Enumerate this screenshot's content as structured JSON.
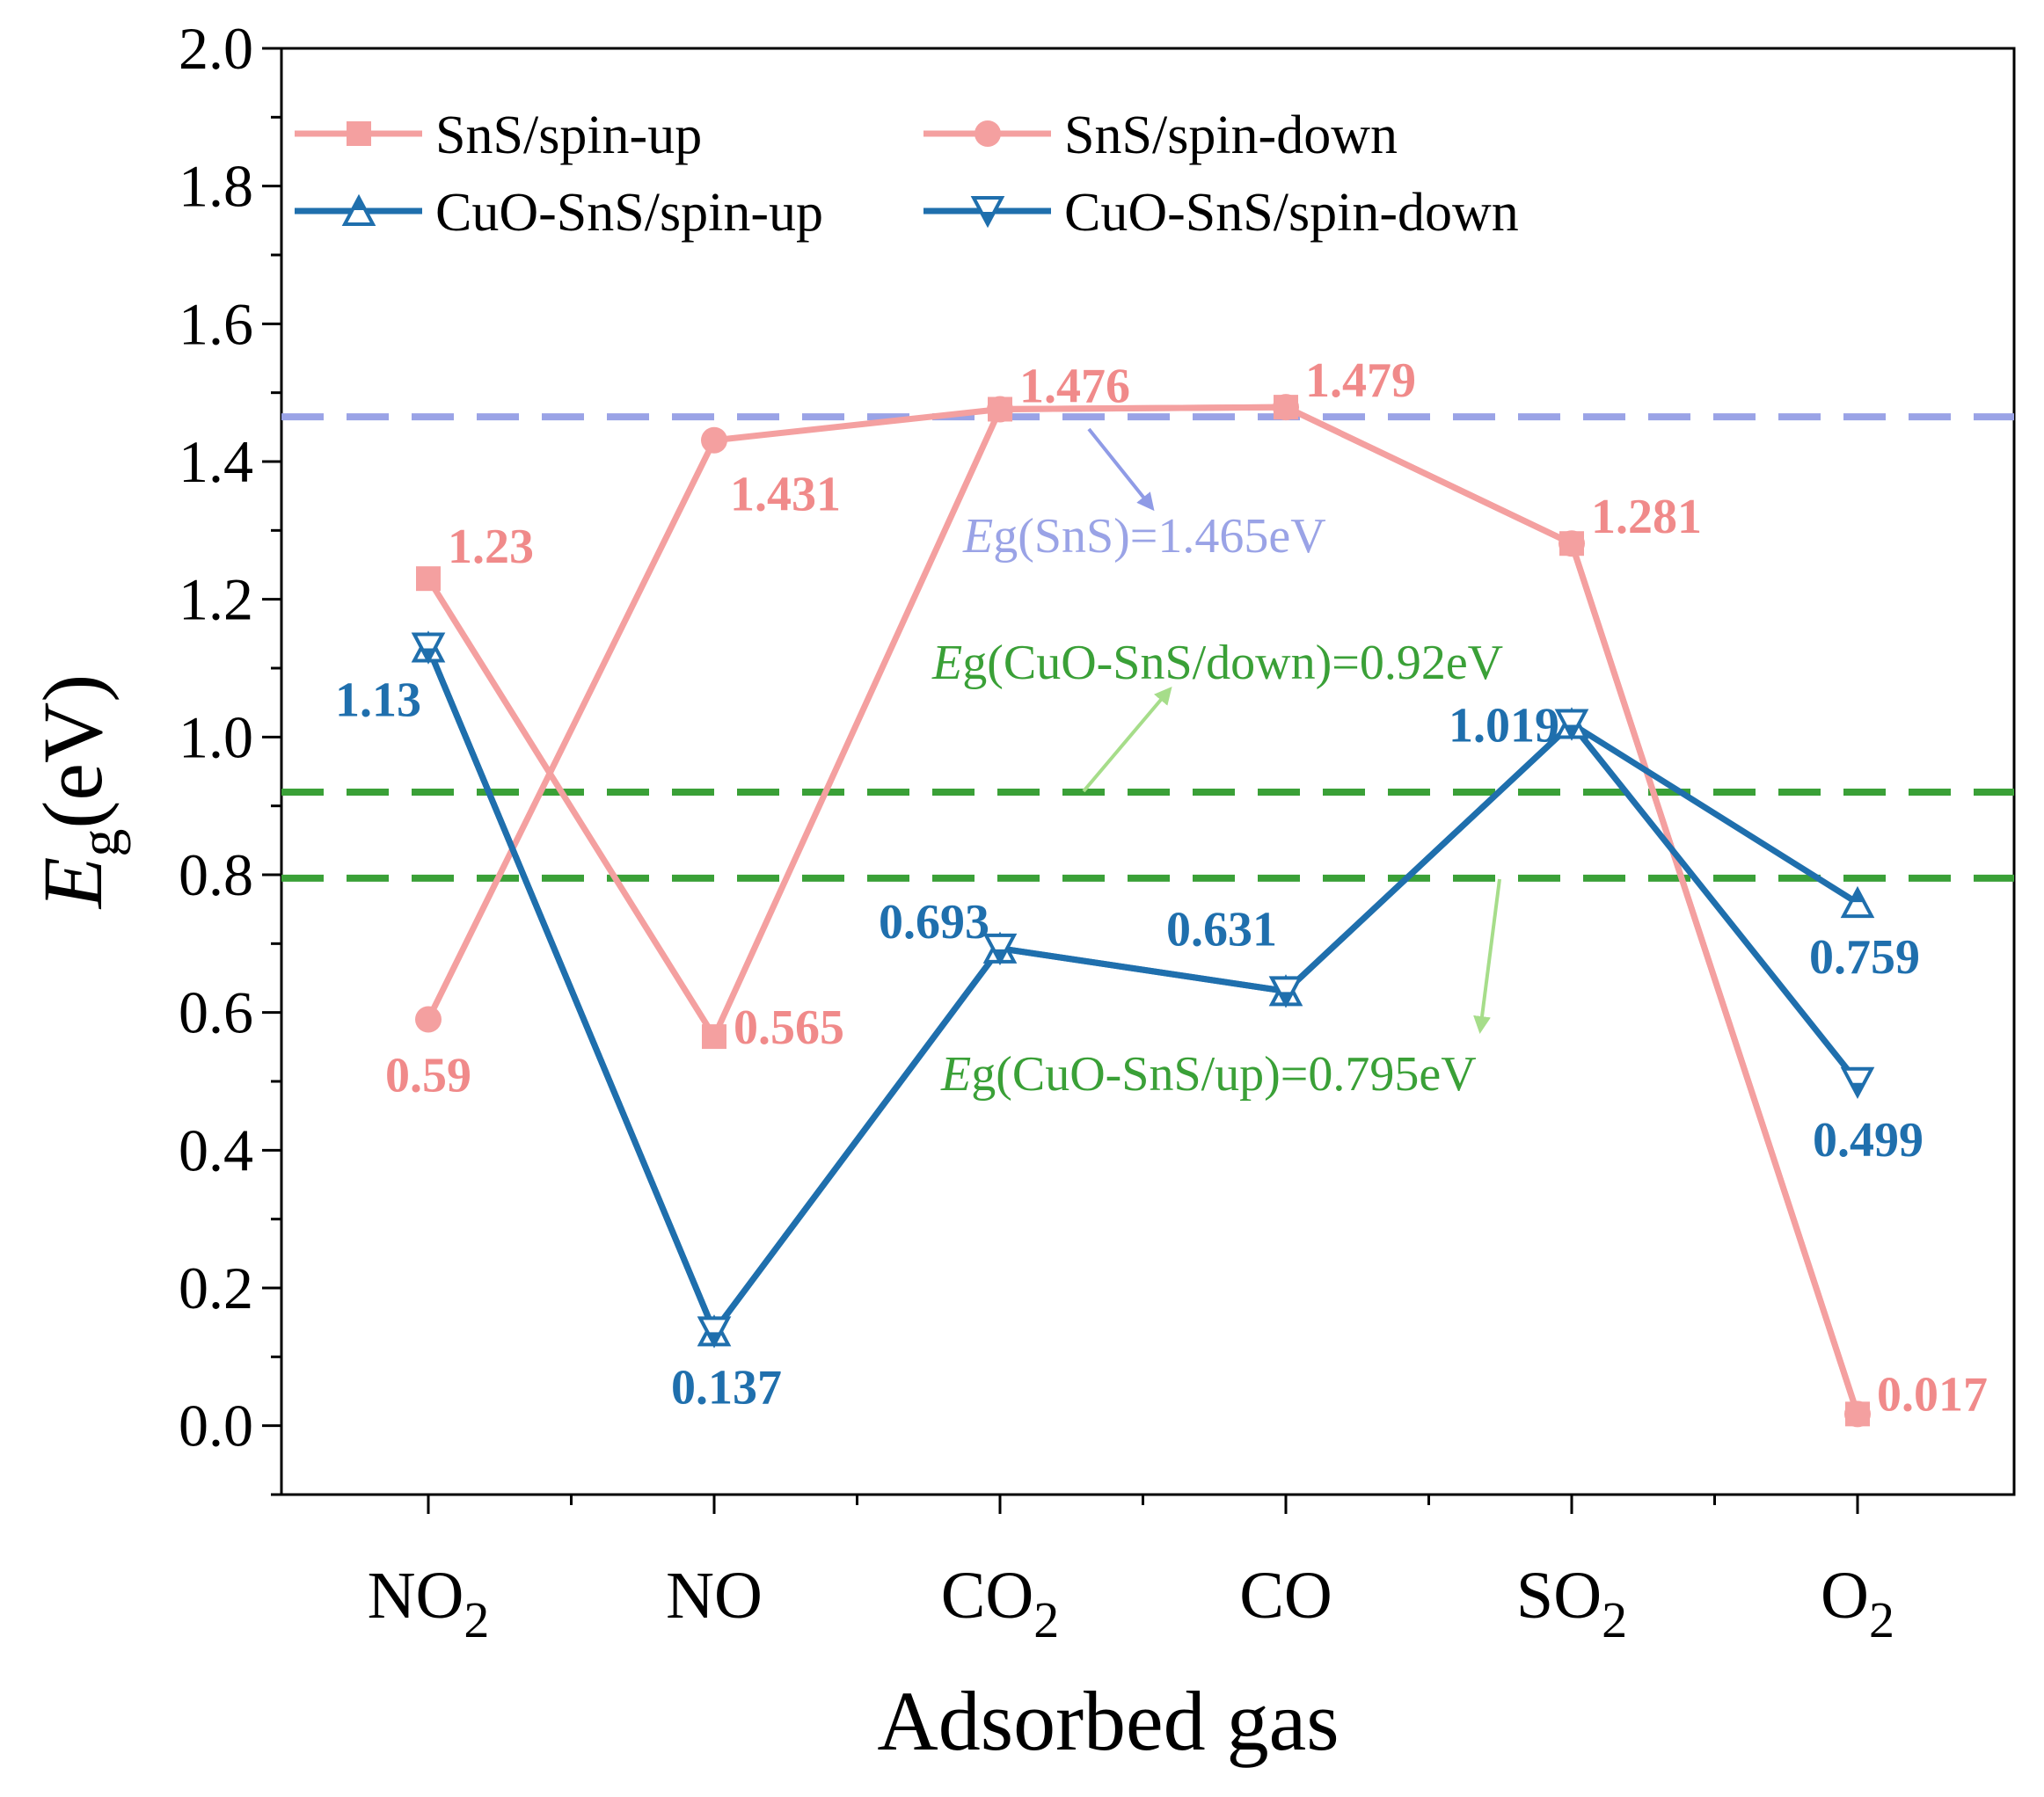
{
  "chart_data": {
    "type": "line",
    "xlabel": "Adsorbed gas",
    "ylabel_main": "E",
    "ylabel_sub": "g",
    "ylabel_unit": "(eV)",
    "ylim": [
      -0.1,
      2.0
    ],
    "yticks": [
      "0.0",
      "0.2",
      "0.4",
      "0.6",
      "0.8",
      "1.0",
      "1.2",
      "1.4",
      "1.6",
      "1.8",
      "2.0"
    ],
    "categories": [
      {
        "main": "NO",
        "sub": "2"
      },
      {
        "main": "NO",
        "sub": ""
      },
      {
        "main": "CO",
        "sub": "2"
      },
      {
        "main": "CO",
        "sub": ""
      },
      {
        "main": "SO",
        "sub": "2"
      },
      {
        "main": "O",
        "sub": "2"
      }
    ],
    "series": [
      {
        "name": "SnS/spin-up",
        "color": "#f4a0a0",
        "marker": "square",
        "values": [
          1.23,
          0.565,
          1.476,
          1.479,
          1.281,
          0.017
        ],
        "labels": [
          "1.23",
          "0.565",
          "1.476",
          "1.479",
          "1.281",
          "0.017"
        ]
      },
      {
        "name": "SnS/spin-down",
        "color": "#f4a0a0",
        "marker": "circle",
        "values": [
          0.59,
          1.431,
          1.476,
          1.479,
          1.281,
          0.017
        ],
        "labels": [
          "0.59",
          "1.431",
          "",
          "",
          "",
          ""
        ]
      },
      {
        "name": "CuO-SnS/spin-up",
        "color": "#1f6fad",
        "marker": "triangle-up-open",
        "values": [
          1.13,
          0.137,
          0.693,
          0.631,
          1.019,
          0.759
        ],
        "labels": [
          "1.13",
          "0.137",
          "0.693",
          "0.631",
          "1.019",
          "0.759"
        ]
      },
      {
        "name": "CuO-SnS/spin-down",
        "color": "#1f6fad",
        "marker": "triangle-down-open",
        "values": [
          1.13,
          0.137,
          0.693,
          0.631,
          1.019,
          0.499
        ],
        "labels": [
          "",
          "",
          "",
          "",
          "",
          "0.499"
        ]
      }
    ],
    "reference_lines": [
      {
        "value": 1.465,
        "color": "#9aa3e6",
        "italic": "E",
        "text": "g(SnS)=1.465eV"
      },
      {
        "value": 0.92,
        "color": "#3aa037",
        "italic": "E",
        "text": "g(CuO-SnS/down)=0.92eV"
      },
      {
        "value": 0.795,
        "color": "#3aa037",
        "italic": "E",
        "text": "g(CuO-SnS/up)=0.795eV"
      }
    ]
  }
}
